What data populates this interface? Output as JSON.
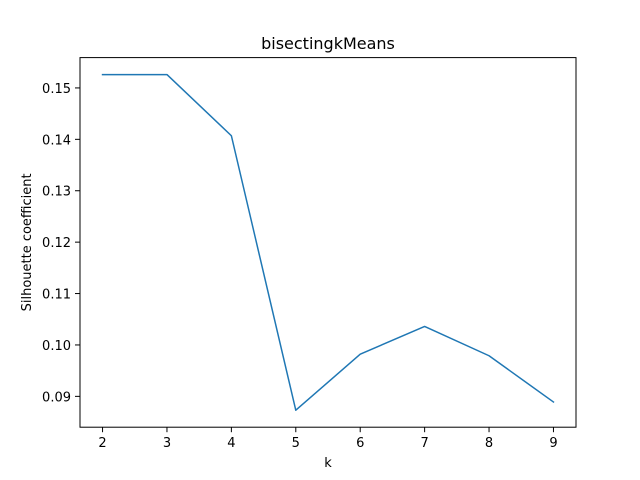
{
  "chart_data": {
    "type": "line",
    "title": "bisectingkMeans",
    "xlabel": "k",
    "ylabel": "Silhouette coefficient",
    "x": [
      2,
      3,
      4,
      5,
      6,
      7,
      8,
      9
    ],
    "series": [
      {
        "values": [
          0.1526,
          0.1526,
          0.1407,
          0.0873,
          0.0982,
          0.1036,
          0.0979,
          0.0889
        ],
        "color": "#1f77b4"
      }
    ],
    "xlim": [
      1.65,
      9.35
    ],
    "ylim": [
      0.084,
      0.1559
    ],
    "xticks": [
      2,
      3,
      4,
      5,
      6,
      7,
      8,
      9
    ],
    "xtick_labels": [
      "2",
      "3",
      "4",
      "5",
      "6",
      "7",
      "8",
      "9"
    ],
    "yticks": [
      0.09,
      0.1,
      0.11,
      0.12,
      0.13,
      0.14,
      0.15
    ],
    "ytick_labels": [
      "0.09",
      "0.10",
      "0.11",
      "0.12",
      "0.13",
      "0.14",
      "0.15"
    ],
    "grid": false,
    "legend": "none"
  }
}
